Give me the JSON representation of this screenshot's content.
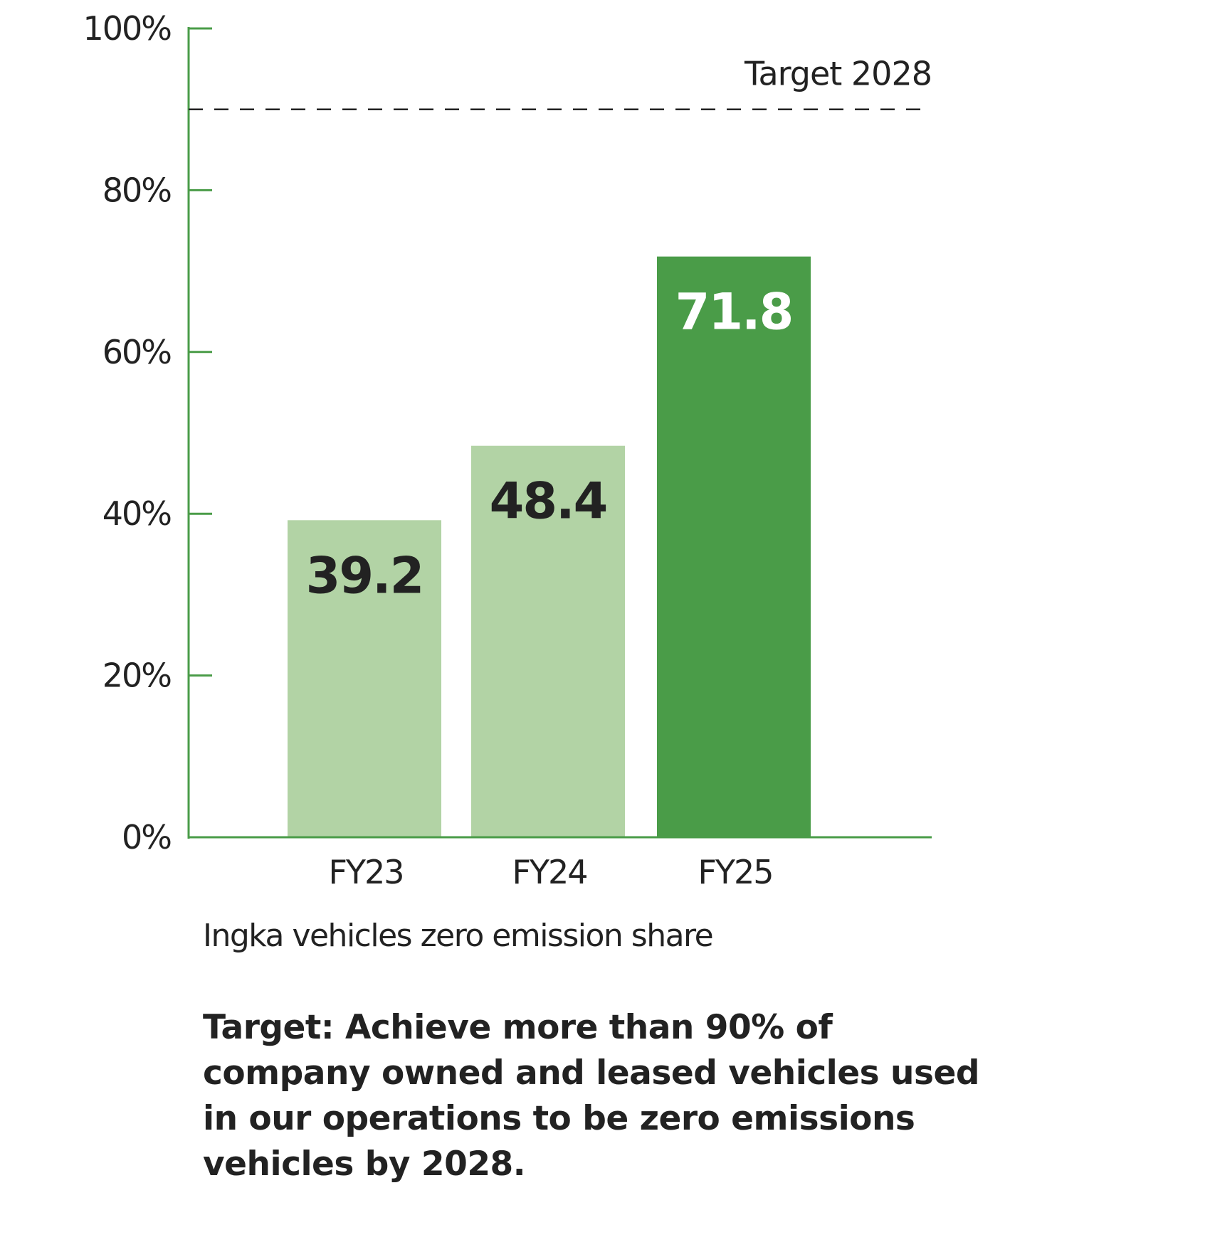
{
  "chart_data": {
    "type": "bar",
    "categories": [
      "FY23",
      "FY24",
      "FY25"
    ],
    "values": [
      39.2,
      48.4,
      71.8
    ],
    "data_labels": [
      "39.2",
      "48.4",
      "71.8"
    ],
    "bar_colors": [
      "#b2d3a5",
      "#b2d3a5",
      "#4a9c48"
    ],
    "label_colors": [
      "#222222",
      "#222222",
      "#ffffff"
    ],
    "axis_color": "#4a9c48",
    "ylim": [
      0,
      100
    ],
    "yticks": [
      0,
      20,
      40,
      60,
      80,
      100
    ],
    "ytick_labels": [
      "0%",
      "20%",
      "40%",
      "60%",
      "80%",
      "100%"
    ],
    "reference_line": {
      "value": 90,
      "label": "Target 2028",
      "style": "dashed"
    },
    "xlabel": "Ingka vehicles zero emission share",
    "ylabel": "",
    "grid": false
  },
  "target_note": "Target: Achieve more than 90% of company owned and leased vehicles used in our operations to be zero emissions vehicles by 2028."
}
